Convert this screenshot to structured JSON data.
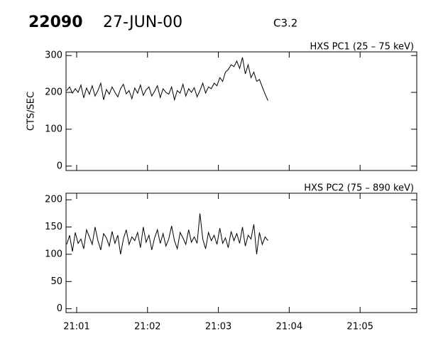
{
  "header": {
    "id": "22090",
    "date": "27-JUN-00",
    "flare_class": "C3.2"
  },
  "chart_data": [
    {
      "type": "line",
      "title": "HXS PC1 (25 – 75 keV)",
      "ylabel": "CTS/SEC",
      "color": "#000000",
      "x": [
        0.86,
        0.9,
        0.94,
        0.98,
        1.02,
        1.06,
        1.1,
        1.14,
        1.18,
        1.22,
        1.26,
        1.3,
        1.34,
        1.38,
        1.42,
        1.46,
        1.5,
        1.54,
        1.58,
        1.62,
        1.66,
        1.7,
        1.74,
        1.78,
        1.82,
        1.86,
        1.9,
        1.94,
        1.98,
        2.02,
        2.06,
        2.1,
        2.14,
        2.18,
        2.22,
        2.26,
        2.3,
        2.34,
        2.38,
        2.42,
        2.46,
        2.5,
        2.54,
        2.58,
        2.62,
        2.66,
        2.7,
        2.74,
        2.78,
        2.82,
        2.86,
        2.9,
        2.94,
        2.98,
        3.02,
        3.06,
        3.1,
        3.14,
        3.18,
        3.22,
        3.26,
        3.3,
        3.34,
        3.38,
        3.42,
        3.46,
        3.5,
        3.54,
        3.58,
        3.62,
        3.66,
        3.7
      ],
      "values": [
        205,
        215,
        198,
        210,
        200,
        220,
        185,
        212,
        195,
        218,
        190,
        205,
        225,
        180,
        208,
        195,
        215,
        200,
        188,
        210,
        222,
        196,
        205,
        183,
        212,
        198,
        220,
        192,
        207,
        215,
        190,
        203,
        218,
        186,
        210,
        200,
        195,
        215,
        180,
        205,
        198,
        222,
        190,
        210,
        200,
        213,
        188,
        205,
        225,
        198,
        215,
        210,
        225,
        218,
        240,
        230,
        255,
        262,
        275,
        270,
        285,
        265,
        295,
        250,
        275,
        240,
        255,
        230,
        235,
        215,
        195,
        178
      ],
      "xlim": [
        0.85,
        5.8
      ],
      "xticks": [
        1,
        2,
        3,
        4,
        5
      ],
      "ylim": [
        -12,
        310
      ],
      "yticks": [
        0,
        100,
        200,
        300
      ]
    },
    {
      "type": "line",
      "title": "HXS PC2 (75 – 890 keV)",
      "color": "#000000",
      "x": [
        0.86,
        0.9,
        0.94,
        0.98,
        1.02,
        1.06,
        1.1,
        1.14,
        1.18,
        1.22,
        1.26,
        1.3,
        1.34,
        1.38,
        1.42,
        1.46,
        1.5,
        1.54,
        1.58,
        1.62,
        1.66,
        1.7,
        1.74,
        1.78,
        1.82,
        1.86,
        1.9,
        1.94,
        1.98,
        2.02,
        2.06,
        2.1,
        2.14,
        2.18,
        2.22,
        2.26,
        2.3,
        2.34,
        2.38,
        2.42,
        2.46,
        2.5,
        2.54,
        2.58,
        2.62,
        2.66,
        2.7,
        2.74,
        2.78,
        2.82,
        2.86,
        2.9,
        2.94,
        2.98,
        3.02,
        3.06,
        3.1,
        3.14,
        3.18,
        3.22,
        3.26,
        3.3,
        3.34,
        3.38,
        3.42,
        3.46,
        3.5,
        3.54,
        3.58,
        3.62,
        3.66,
        3.7
      ],
      "values": [
        118,
        135,
        105,
        140,
        120,
        128,
        110,
        145,
        132,
        118,
        150,
        125,
        108,
        138,
        130,
        115,
        142,
        120,
        135,
        100,
        128,
        145,
        118,
        132,
        125,
        140,
        112,
        150,
        122,
        135,
        108,
        130,
        145,
        120,
        138,
        115,
        128,
        152,
        125,
        110,
        140,
        130,
        118,
        145,
        122,
        132,
        120,
        175,
        128,
        110,
        140,
        125,
        135,
        118,
        148,
        120,
        130,
        112,
        142,
        125,
        138,
        120,
        150,
        115,
        135,
        128,
        155,
        100,
        140,
        118,
        132,
        125
      ],
      "xlim": [
        0.85,
        5.8
      ],
      "xticks": [
        {
          "value": 1,
          "label": "21:01"
        },
        {
          "value": 2,
          "label": "21:02"
        },
        {
          "value": 3,
          "label": "21:03"
        },
        {
          "value": 4,
          "label": "21:04"
        },
        {
          "value": 5,
          "label": "21:05"
        }
      ],
      "ylim": [
        -7,
        212
      ],
      "yticks": [
        0,
        50,
        100,
        150,
        200
      ]
    }
  ]
}
